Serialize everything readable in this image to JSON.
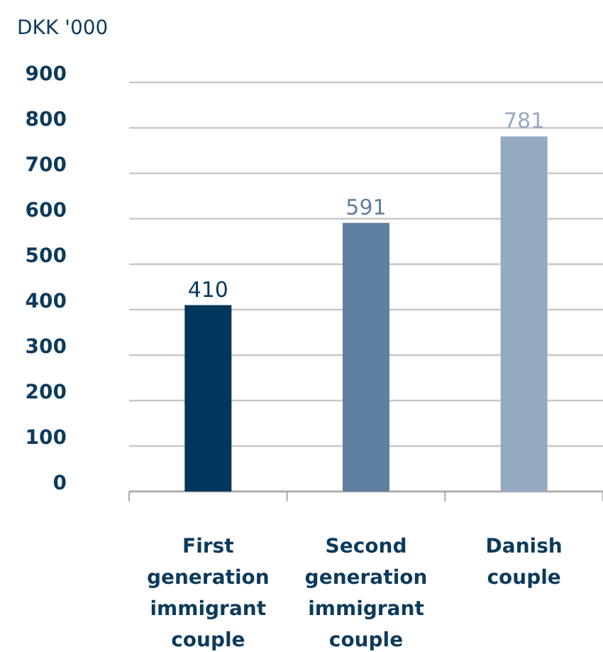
{
  "chart_data": {
    "type": "bar",
    "ylabel": "DKK '000",
    "categories": [
      "First generation immigrant couple",
      "Second generation immigrant couple",
      "Danish couple"
    ],
    "values": [
      410,
      591,
      781
    ],
    "colors": [
      "#00375a",
      "#5f80a0",
      "#95a9c1"
    ],
    "ylim": [
      0,
      900
    ],
    "yticks": [
      0,
      100,
      200,
      300,
      400,
      500,
      600,
      700,
      800,
      900
    ],
    "grid": "y",
    "data_labels": true
  }
}
